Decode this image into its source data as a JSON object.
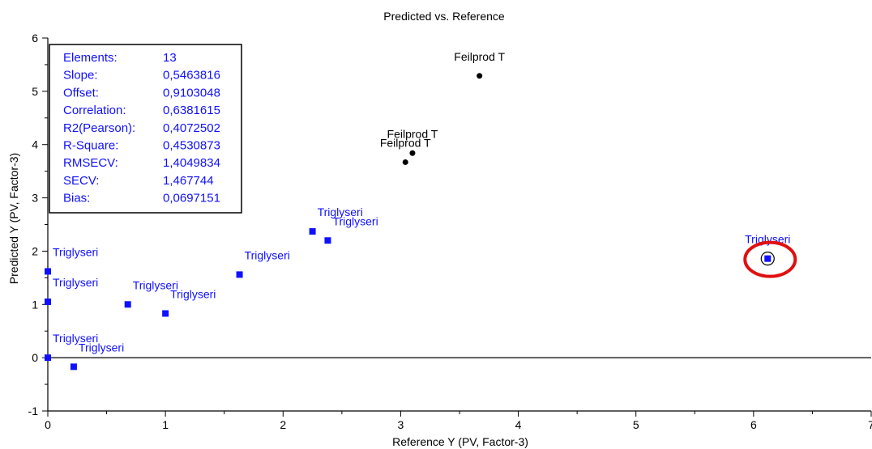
{
  "chart_data": {
    "type": "scatter",
    "title": "Predicted vs. Reference",
    "xlabel": "Reference Y (PV, Factor-3)",
    "ylabel": "Predicted Y (PV, Factor-3)",
    "xlim": [
      0,
      7
    ],
    "ylim": [
      -1,
      6
    ],
    "x_ticks": [
      "0",
      "1",
      "2",
      "3",
      "4",
      "5",
      "6",
      "7"
    ],
    "y_ticks": [
      "-1",
      "0",
      "1",
      "2",
      "3",
      "4",
      "5",
      "6"
    ],
    "grid": false,
    "zero_line": true,
    "series": [
      {
        "name": "Triglyseri",
        "color": "#1010ff",
        "marker": "square",
        "points": [
          {
            "x": 0.0,
            "y": 1.62,
            "label": "Triglyseri"
          },
          {
            "x": 0.0,
            "y": 1.05,
            "label": "Triglyseri"
          },
          {
            "x": 0.0,
            "y": 0.0,
            "label": "Triglyseri"
          },
          {
            "x": 0.22,
            "y": -0.17,
            "label": "Triglyseri"
          },
          {
            "x": 0.68,
            "y": 1.0,
            "label": "Triglyseri"
          },
          {
            "x": 1.0,
            "y": 0.83,
            "label": "Triglyseri"
          },
          {
            "x": 1.63,
            "y": 1.56,
            "label": "Triglyseri"
          },
          {
            "x": 2.25,
            "y": 2.37,
            "label": "Triglyseri"
          },
          {
            "x": 2.38,
            "y": 2.2,
            "label": "Triglyseri"
          },
          {
            "x": 6.12,
            "y": 1.86,
            "label": "Triglyseri",
            "highlighted": true
          }
        ]
      },
      {
        "name": "Feilprod T",
        "color": "#000000",
        "marker": "circle",
        "points": [
          {
            "x": 3.67,
            "y": 5.29,
            "label": "Feilprod T"
          },
          {
            "x": 3.1,
            "y": 3.84,
            "label": "Feilprod T"
          },
          {
            "x": 3.04,
            "y": 3.67,
            "label": "Feilprod T"
          }
        ]
      }
    ],
    "stats_box": [
      {
        "label": "Elements:",
        "value": "13"
      },
      {
        "label": "Slope:",
        "value": "0,5463816"
      },
      {
        "label": "Offset:",
        "value": "0,9103048"
      },
      {
        "label": "Correlation:",
        "value": "0,6381615"
      },
      {
        "label": "R2(Pearson):",
        "value": "0,4072502"
      },
      {
        "label": "R-Square:",
        "value": "0,4530873"
      },
      {
        "label": "RMSECV:",
        "value": "1,4049834"
      },
      {
        "label": "SECV:",
        "value": "1,467744"
      },
      {
        "label": "Bias:",
        "value": "0,0697151"
      }
    ],
    "stats_color": "#1010ff",
    "highlight_ring_color": "#e01010"
  }
}
